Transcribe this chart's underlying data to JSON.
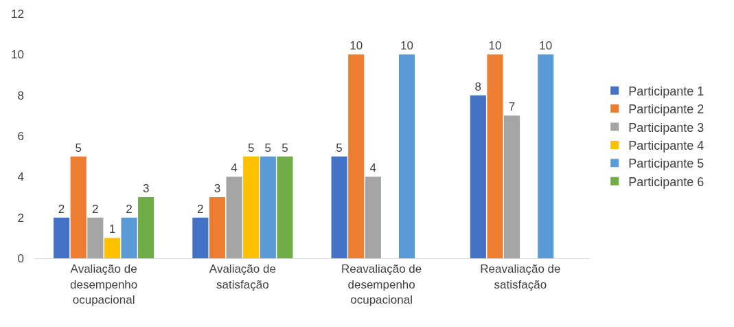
{
  "chart_data": {
    "type": "bar",
    "categories": [
      "Avaliação de desempenho ocupacional",
      "Avaliação de satisfação",
      "Reavaliação de desempenho ocupacional",
      "Reavaliação de satisfação"
    ],
    "series": [
      {
        "name": "Participante 1",
        "color": "#4472c4",
        "values": [
          2,
          2,
          5,
          8
        ]
      },
      {
        "name": "Participante 2",
        "color": "#ed7d31",
        "values": [
          5,
          3,
          10,
          10
        ]
      },
      {
        "name": "Participante 3",
        "color": "#a5a5a5",
        "values": [
          2,
          4,
          4,
          7
        ]
      },
      {
        "name": "Participante 4",
        "color": "#ffc000",
        "values": [
          1,
          5,
          null,
          null
        ]
      },
      {
        "name": "Participante 5",
        "color": "#5b9bd5",
        "values": [
          2,
          5,
          10,
          10
        ]
      },
      {
        "name": "Participante 6",
        "color": "#70ad47",
        "values": [
          3,
          5,
          null,
          null
        ]
      }
    ],
    "ylim": [
      0,
      12
    ],
    "yticks": [
      0,
      2,
      4,
      6,
      8,
      10,
      12
    ],
    "grid": false,
    "legend": "right",
    "data_labels": true
  }
}
